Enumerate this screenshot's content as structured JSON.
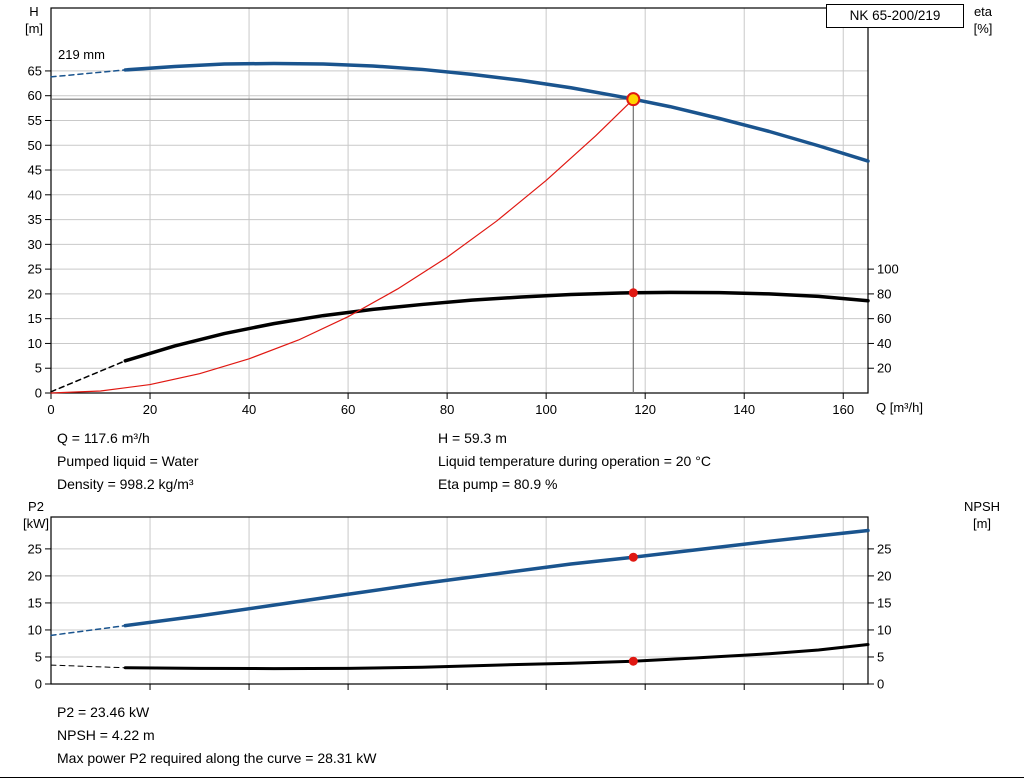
{
  "colors": {
    "blue": "#1a548e",
    "black": "#000000",
    "red": "#e01812",
    "grid": "#c9c9c9",
    "frame": "#000000",
    "duty_line": "#707070",
    "duty_fill": "#ffd400"
  },
  "info_top": {
    "col1": [
      "Q = 117.6 m³/h",
      "Pumped liquid = Water",
      "Density = 998.2 kg/m³"
    ],
    "col2": [
      "H = 59.3 m",
      "Liquid temperature during operation = 20 °C",
      "Eta pump = 80.9 %"
    ]
  },
  "info_bottom": {
    "lines": [
      "P2 = 23.46 kW",
      "NPSH = 4.22 m",
      "Max power P2 required along the curve = 28.31 kW"
    ]
  },
  "chart_data": [
    {
      "type": "line",
      "id": "qh-chart",
      "title": "NK 65-200/219",
      "annotation": "219 mm",
      "x": {
        "label": "Q [m³/h]",
        "min": 0,
        "max": 165,
        "ticks": [
          0,
          20,
          40,
          60,
          80,
          100,
          120,
          140,
          160
        ]
      },
      "y_left": {
        "label_line1": "H",
        "label_line2": "[m]",
        "min": 0,
        "max": 77.7,
        "ticks": [
          0,
          5,
          10,
          15,
          20,
          25,
          30,
          35,
          40,
          45,
          50,
          55,
          60,
          65
        ]
      },
      "y_right": {
        "label_line1": "eta",
        "label_line2": "[%]",
        "ticks": [
          20,
          40,
          60,
          80,
          100
        ],
        "left_units_per_unit": 0.25
      },
      "series": [
        {
          "name": "head-curve",
          "color_key": "blue",
          "width": 3.5,
          "scale": 1,
          "dash_points": [
            [
              0,
              63.8
            ],
            [
              15,
              65.2
            ]
          ],
          "points": [
            [
              15,
              65.2
            ],
            [
              25,
              65.9
            ],
            [
              35,
              66.4
            ],
            [
              45,
              66.5
            ],
            [
              55,
              66.4
            ],
            [
              65,
              66.0
            ],
            [
              75,
              65.3
            ],
            [
              85,
              64.3
            ],
            [
              95,
              63.1
            ],
            [
              105,
              61.6
            ],
            [
              115,
              59.8
            ],
            [
              117.6,
              59.3
            ],
            [
              125,
              57.8
            ],
            [
              135,
              55.4
            ],
            [
              145,
              52.8
            ],
            [
              155,
              49.9
            ],
            [
              165,
              46.8
            ]
          ]
        },
        {
          "name": "efficiency-curve",
          "color_key": "black",
          "width": 3.5,
          "scale": 0.25,
          "dash_points": [
            [
              0,
              1
            ],
            [
              15,
              26
            ]
          ],
          "points": [
            [
              15,
              26
            ],
            [
              25,
              38
            ],
            [
              35,
              48
            ],
            [
              45,
              56
            ],
            [
              55,
              62.5
            ],
            [
              65,
              67.5
            ],
            [
              75,
              71.5
            ],
            [
              85,
              75
            ],
            [
              95,
              77.5
            ],
            [
              105,
              79.5
            ],
            [
              115,
              80.7
            ],
            [
              117.6,
              80.9
            ],
            [
              125,
              81.2
            ],
            [
              135,
              81.0
            ],
            [
              145,
              80.0
            ],
            [
              155,
              78.0
            ],
            [
              165,
              74.5
            ]
          ]
        },
        {
          "name": "system-curve",
          "color_key": "red",
          "width": 1.2,
          "scale": 1,
          "points": [
            [
              0,
              0
            ],
            [
              10,
              0.4
            ],
            [
              20,
              1.7
            ],
            [
              30,
              3.9
            ],
            [
              40,
              6.9
            ],
            [
              50,
              10.7
            ],
            [
              60,
              15.4
            ],
            [
              70,
              21.0
            ],
            [
              80,
              27.4
            ],
            [
              90,
              34.7
            ],
            [
              100,
              42.9
            ],
            [
              110,
              51.9
            ],
            [
              117.6,
              59.3
            ]
          ]
        }
      ],
      "duty": {
        "q": 117.6,
        "h": 59.3,
        "eta": 80.9
      }
    },
    {
      "type": "line",
      "id": "p2-npsh-chart",
      "x": {
        "min": 0,
        "max": 165,
        "ticks": [
          20,
          40,
          60,
          80,
          100,
          120,
          140,
          160
        ]
      },
      "y_left": {
        "label_line1": "P2",
        "label_line2": "[kW]",
        "min": 0,
        "max": 30.9,
        "ticks": [
          0,
          5,
          10,
          15,
          20,
          25
        ]
      },
      "y_right": {
        "label_line1": "NPSH",
        "label_line2": "[m]",
        "ticks": [
          0,
          5,
          10,
          15,
          20,
          25
        ],
        "left_units_per_unit": 1
      },
      "series": [
        {
          "name": "p2-curve",
          "color_key": "blue",
          "width": 3.5,
          "scale": 1,
          "dash_points": [
            [
              0,
              9.0
            ],
            [
              15,
              10.8
            ]
          ],
          "points": [
            [
              15,
              10.8
            ],
            [
              30,
              12.6
            ],
            [
              45,
              14.6
            ],
            [
              60,
              16.6
            ],
            [
              75,
              18.6
            ],
            [
              90,
              20.4
            ],
            [
              105,
              22.2
            ],
            [
              117.6,
              23.46
            ],
            [
              130,
              24.8
            ],
            [
              145,
              26.4
            ],
            [
              155,
              27.4
            ],
            [
              165,
              28.4
            ]
          ]
        },
        {
          "name": "npsh-curve",
          "color_key": "black",
          "width": 3,
          "scale": 1,
          "dash_points": [
            [
              0,
              3.5
            ],
            [
              15,
              3.0
            ]
          ],
          "points": [
            [
              15,
              3.0
            ],
            [
              30,
              2.9
            ],
            [
              45,
              2.85
            ],
            [
              60,
              2.9
            ],
            [
              75,
              3.1
            ],
            [
              90,
              3.5
            ],
            [
              105,
              3.85
            ],
            [
              117.6,
              4.22
            ],
            [
              130,
              4.8
            ],
            [
              145,
              5.6
            ],
            [
              155,
              6.3
            ],
            [
              165,
              7.3
            ]
          ]
        }
      ],
      "duty": {
        "q": 117.6,
        "p2": 23.46,
        "npsh": 4.22
      }
    }
  ]
}
